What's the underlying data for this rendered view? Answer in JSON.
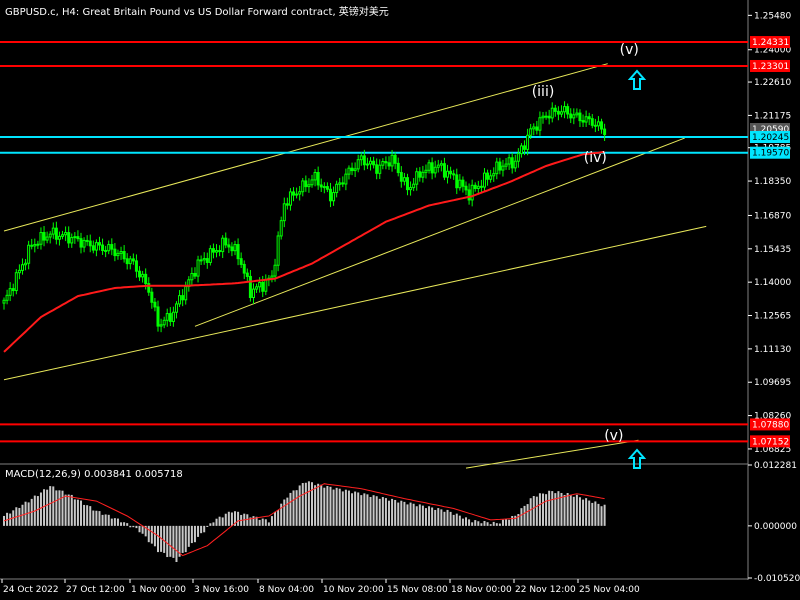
{
  "header": {
    "title": "GBPUSD.c, H4:  Great Britain Pound vs US Dollar Forward contract, 英镑对美元"
  },
  "macd": {
    "label": "MACD(12,26,9) 0.003841 0.005718",
    "ticks": [
      "0.012281",
      "0.000000",
      "-0.010520"
    ]
  },
  "colors": {
    "background": "#000000",
    "candles": "#00ff00",
    "moving_average": "#ff1a1a",
    "horizontal_red": "#ff0000",
    "horizontal_cyan": "#00e5ff",
    "trendline": "#e8e85a",
    "macd_hist": "#c8c8c8",
    "macd_signal": "#ff2020"
  },
  "chart_data": {
    "type": "candlestick",
    "symbol": "GBPUSD.c",
    "timeframe": "H4",
    "ylim": [
      1.0622,
      1.2614
    ],
    "y_ticks": [
      "1.25480",
      "1.24000",
      "1.22610",
      "1.21175",
      "1.19785",
      "1.18350",
      "1.16870",
      "1.15435",
      "1.14000",
      "1.12565",
      "1.11130",
      "1.09695",
      "1.08260",
      "1.06825"
    ],
    "x_ticks": [
      "24 Oct 2022",
      "27 Oct 12:00",
      "1 Nov 00:00",
      "3 Nov 16:00",
      "8 Nov 04:00",
      "10 Nov 20:00",
      "15 Nov 08:00",
      "18 Nov 00:00",
      "22 Nov 12:00",
      "25 Nov 04:00"
    ],
    "price_tags": [
      {
        "label": "1.24331",
        "value": 1.24331,
        "color": "#ff0000"
      },
      {
        "label": "1.23301",
        "value": 1.23301,
        "color": "#ff0000"
      },
      {
        "label": "1.20590",
        "value": 1.2059,
        "color": "#555555"
      },
      {
        "label": "1.20245",
        "value": 1.20245,
        "color": "#00e5ff"
      },
      {
        "label": "1.19570",
        "value": 1.1957,
        "color": "#00e5ff"
      },
      {
        "label": "1.07880",
        "value": 1.0788,
        "color": "#ff0000"
      },
      {
        "label": "1.07152",
        "value": 1.07152,
        "color": "#ff0000"
      }
    ],
    "horizontal_lines": [
      {
        "value": 1.24331,
        "color": "#ff0000"
      },
      {
        "value": 1.23301,
        "color": "#ff0000"
      },
      {
        "value": 1.20245,
        "color": "#00e5ff"
      },
      {
        "value": 1.1957,
        "color": "#00e5ff"
      },
      {
        "value": 1.0788,
        "color": "#ff0000"
      },
      {
        "value": 1.07152,
        "color": "#ff0000"
      }
    ],
    "wave_labels": [
      {
        "text": "(v)",
        "value": 1.2382
      },
      {
        "text": "(iii)",
        "value": 1.22
      },
      {
        "text": "(iv)",
        "value": 1.1918
      },
      {
        "text": "(v)",
        "value": 1.0722
      }
    ],
    "close_anchors": [
      [
        0,
        1.131
      ],
      [
        4,
        1.142
      ],
      [
        9,
        1.156
      ],
      [
        15,
        1.161
      ],
      [
        22,
        1.159
      ],
      [
        28,
        1.156
      ],
      [
        35,
        1.154
      ],
      [
        42,
        1.148
      ],
      [
        47,
        1.137
      ],
      [
        50,
        1.122
      ],
      [
        54,
        1.125
      ],
      [
        58,
        1.135
      ],
      [
        63,
        1.148
      ],
      [
        68,
        1.153
      ],
      [
        72,
        1.157
      ],
      [
        76,
        1.152
      ],
      [
        80,
        1.136
      ],
      [
        84,
        1.139
      ],
      [
        87,
        1.142
      ],
      [
        91,
        1.174
      ],
      [
        96,
        1.18
      ],
      [
        101,
        1.185
      ],
      [
        106,
        1.177
      ],
      [
        111,
        1.186
      ],
      [
        116,
        1.193
      ],
      [
        121,
        1.189
      ],
      [
        126,
        1.193
      ],
      [
        131,
        1.18
      ],
      [
        136,
        1.188
      ],
      [
        141,
        1.19
      ],
      [
        146,
        1.185
      ],
      [
        151,
        1.178
      ],
      [
        156,
        1.184
      ],
      [
        161,
        1.19
      ],
      [
        166,
        1.192
      ],
      [
        171,
        1.205
      ],
      [
        176,
        1.212
      ],
      [
        181,
        1.214
      ],
      [
        186,
        1.211
      ],
      [
        191,
        1.209
      ],
      [
        195,
        1.205
      ]
    ],
    "ma_anchors": [
      [
        0,
        1.11
      ],
      [
        12,
        1.125
      ],
      [
        24,
        1.134
      ],
      [
        36,
        1.1375
      ],
      [
        47,
        1.1385
      ],
      [
        60,
        1.1385
      ],
      [
        75,
        1.1395
      ],
      [
        88,
        1.1415
      ],
      [
        100,
        1.148
      ],
      [
        112,
        1.157
      ],
      [
        124,
        1.166
      ],
      [
        138,
        1.173
      ],
      [
        152,
        1.177
      ],
      [
        164,
        1.183
      ],
      [
        176,
        1.19
      ],
      [
        188,
        1.195
      ],
      [
        195,
        1.196
      ]
    ],
    "macd_hist_anchors": [
      [
        0,
        0.002
      ],
      [
        8,
        0.005
      ],
      [
        15,
        0.008
      ],
      [
        22,
        0.006
      ],
      [
        30,
        0.003
      ],
      [
        38,
        0.001
      ],
      [
        44,
        -0.001
      ],
      [
        50,
        -0.005
      ],
      [
        56,
        -0.007
      ],
      [
        62,
        -0.003
      ],
      [
        68,
        0.001
      ],
      [
        74,
        0.003
      ],
      [
        80,
        0.002
      ],
      [
        86,
        0.001
      ],
      [
        92,
        0.006
      ],
      [
        98,
        0.009
      ],
      [
        104,
        0.008
      ],
      [
        112,
        0.007
      ],
      [
        120,
        0.006
      ],
      [
        128,
        0.005
      ],
      [
        136,
        0.004
      ],
      [
        144,
        0.003
      ],
      [
        152,
        0.001
      ],
      [
        160,
        0.0005
      ],
      [
        166,
        0.002
      ],
      [
        172,
        0.006
      ],
      [
        178,
        0.007
      ],
      [
        186,
        0.006
      ],
      [
        195,
        0.004
      ]
    ],
    "macd_signal_anchors": [
      [
        0,
        0.001
      ],
      [
        10,
        0.003
      ],
      [
        20,
        0.006
      ],
      [
        30,
        0.005
      ],
      [
        40,
        0.002
      ],
      [
        50,
        -0.002
      ],
      [
        58,
        -0.006
      ],
      [
        66,
        -0.004
      ],
      [
        76,
        0.001
      ],
      [
        86,
        0.002
      ],
      [
        96,
        0.006
      ],
      [
        104,
        0.0085
      ],
      [
        116,
        0.0075
      ],
      [
        130,
        0.0055
      ],
      [
        146,
        0.0035
      ],
      [
        158,
        0.0012
      ],
      [
        166,
        0.0015
      ],
      [
        176,
        0.005
      ],
      [
        186,
        0.0065
      ],
      [
        195,
        0.0055
      ]
    ],
    "macd_ylim": [
      -0.01052,
      0.012281
    ]
  }
}
